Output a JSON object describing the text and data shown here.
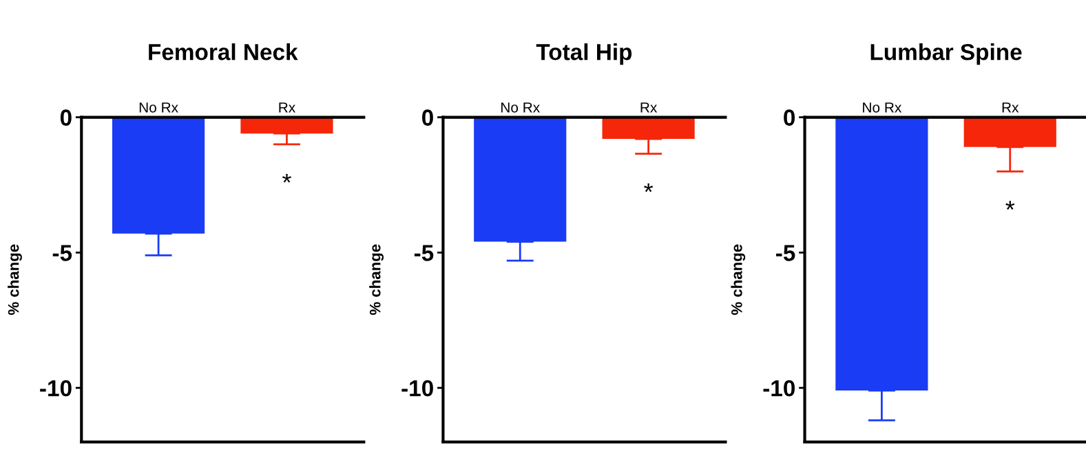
{
  "chart_data": [
    {
      "type": "bar",
      "title": "Femoral Neck",
      "ylabel": "% change",
      "categories": [
        "No Rx",
        "Rx"
      ],
      "values": [
        -4.3,
        -0.6
      ],
      "colors": [
        "#1a3cf5",
        "#f5260a"
      ],
      "errors": [
        [
          -5.1,
          -4.3
        ],
        [
          -1.0,
          -0.6
        ]
      ],
      "ylim": [
        -12,
        0
      ],
      "yticks": [
        0,
        -5,
        -10
      ],
      "grid": false,
      "legend": false,
      "annotations": [
        "*"
      ]
    },
    {
      "type": "bar",
      "title": "Total Hip",
      "ylabel": "% change",
      "categories": [
        "No Rx",
        "Rx"
      ],
      "values": [
        -4.6,
        -0.8
      ],
      "colors": [
        "#1a3cf5",
        "#f5260a"
      ],
      "errors": [
        [
          -5.3,
          -4.6
        ],
        [
          -1.35,
          -0.8
        ]
      ],
      "ylim": [
        -12,
        0
      ],
      "yticks": [
        0,
        -5,
        -10
      ],
      "grid": false,
      "legend": false,
      "annotations": [
        "*"
      ]
    },
    {
      "type": "bar",
      "title": "Lumbar Spine",
      "ylabel": "% change",
      "categories": [
        "No Rx",
        "Rx"
      ],
      "values": [
        -10.1,
        -1.1
      ],
      "colors": [
        "#1a3cf5",
        "#f5260a"
      ],
      "errors": [
        [
          -11.2,
          -10.1
        ],
        [
          -2.0,
          -1.1
        ]
      ],
      "ylim": [
        -12,
        0
      ],
      "yticks": [
        0,
        -5,
        -10
      ],
      "grid": false,
      "legend": false,
      "annotations": [
        "*"
      ]
    }
  ]
}
